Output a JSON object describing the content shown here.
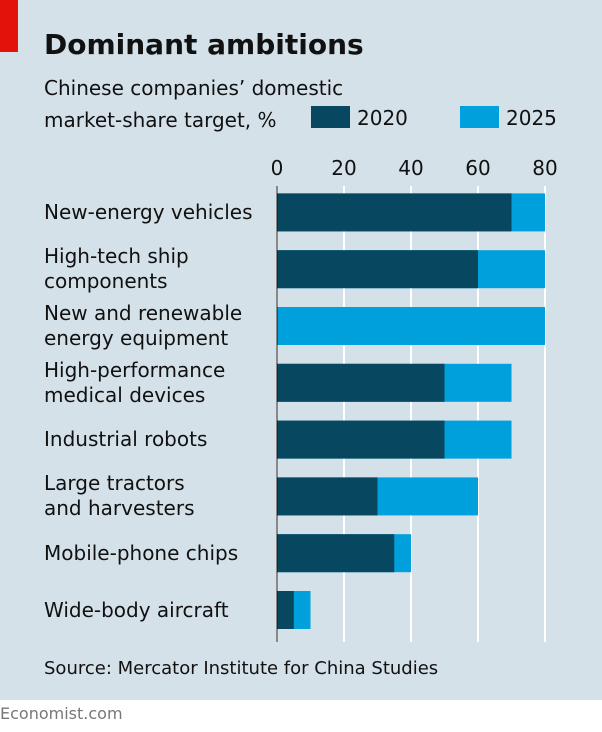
{
  "chart_data": {
    "type": "bar",
    "orientation": "horizontal",
    "layout": "overlapped",
    "title": "Dominant ambitions",
    "subtitle": "Chinese companies’ domestic\nmarket-share target, %",
    "categories": [
      "New-energy vehicles",
      "High-tech ship\ncomponents",
      "New and renewable\nenergy equipment",
      "High-performance\nmedical devices",
      "Industrial robots",
      "Large tractors\nand harvesters",
      "Mobile-phone chips",
      "Wide-body aircraft"
    ],
    "series": [
      {
        "name": "2025",
        "color": "#00a0dc",
        "values": [
          80,
          80,
          80,
          70,
          70,
          60,
          40,
          10
        ]
      },
      {
        "name": "2020",
        "color": "#07475f",
        "values": [
          70,
          60,
          null,
          50,
          50,
          30,
          35,
          5
        ]
      }
    ],
    "xlim": [
      0,
      80
    ],
    "xticks": [
      0,
      20,
      40,
      60,
      80
    ],
    "grid": true,
    "source": "Source: Mercator Institute for China Studies",
    "brand": "Economist.com"
  }
}
